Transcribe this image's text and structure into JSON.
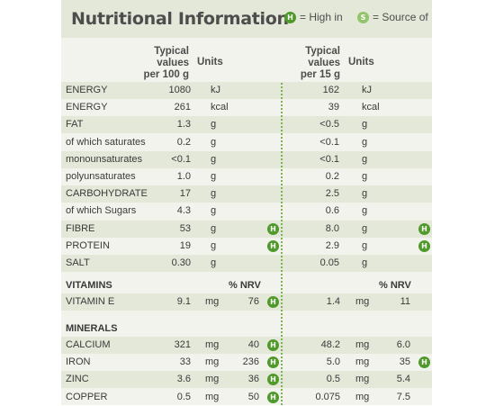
{
  "title": "Nutritional Information",
  "legend": {
    "high_badge": "H",
    "high_label": "= High in",
    "source_badge": "S",
    "source_label": "= Source of"
  },
  "columns": {
    "per100": {
      "line1": "Typical",
      "line2": "values",
      "line3": "per 100 g"
    },
    "units1": "Units",
    "per15": {
      "line1": "Typical",
      "line2": "values",
      "line3": "per 15 g"
    },
    "units2": "Units"
  },
  "nutrients": [
    {
      "name": "ENERGY",
      "v100": "1080",
      "u100": "kJ",
      "h100": "",
      "v15": "162",
      "u15": "kJ",
      "h15": ""
    },
    {
      "name": "ENERGY",
      "v100": "261",
      "u100": "kcal",
      "h100": "",
      "v15": "39",
      "u15": "kcal",
      "h15": ""
    },
    {
      "name": "FAT",
      "v100": "1.3",
      "u100": "g",
      "h100": "",
      "v15": "<0.5",
      "u15": "g",
      "h15": ""
    },
    {
      "name": "of which saturates",
      "v100": "0.2",
      "u100": "g",
      "h100": "",
      "v15": "<0.1",
      "u15": "g",
      "h15": ""
    },
    {
      "name": "monounsaturates",
      "v100": "<0.1",
      "u100": "g",
      "h100": "",
      "v15": "<0.1",
      "u15": "g",
      "h15": ""
    },
    {
      "name": "polyunsaturates",
      "v100": "1.0",
      "u100": "g",
      "h100": "",
      "v15": "0.2",
      "u15": "g",
      "h15": ""
    },
    {
      "name": "CARBOHYDRATE",
      "v100": "17",
      "u100": "g",
      "h100": "",
      "v15": "2.5",
      "u15": "g",
      "h15": ""
    },
    {
      "name": "of which Sugars",
      "v100": "4.3",
      "u100": "g",
      "h100": "",
      "v15": "0.6",
      "u15": "g",
      "h15": ""
    },
    {
      "name": "FIBRE",
      "v100": "53",
      "u100": "g",
      "h100": "H",
      "v15": "8.0",
      "u15": "g",
      "h15": "H"
    },
    {
      "name": "PROTEIN",
      "v100": "19",
      "u100": "g",
      "h100": "H",
      "v15": "2.9",
      "u15": "g",
      "h15": "H"
    },
    {
      "name": "SALT",
      "v100": "0.30",
      "u100": "g",
      "h100": "",
      "v15": "0.05",
      "u15": "g",
      "h15": ""
    }
  ],
  "vitamins": {
    "heading": "VITAMINS",
    "nrv1": "% NRV",
    "nrv2": "% NRV",
    "rows": [
      {
        "name": "VITAMIN E",
        "v100": "9.1",
        "u100": "mg",
        "nrv100": "76",
        "h100": "H",
        "v15": "1.4",
        "u15": "mg",
        "nrv15": "11",
        "h15": ""
      }
    ]
  },
  "minerals": {
    "heading": "MINERALS",
    "rows": [
      {
        "name": "CALCIUM",
        "v100": "321",
        "u100": "mg",
        "nrv100": "40",
        "h100": "H",
        "v15": "48.2",
        "u15": "mg",
        "nrv15": "6.0",
        "h15": ""
      },
      {
        "name": "IRON",
        "v100": "33",
        "u100": "mg",
        "nrv100": "236",
        "h100": "H",
        "v15": "5.0",
        "u15": "mg",
        "nrv15": "35",
        "h15": "H"
      },
      {
        "name": "ZINC",
        "v100": "3.6",
        "u100": "mg",
        "nrv100": "36",
        "h100": "H",
        "v15": "0.5",
        "u15": "mg",
        "nrv15": "5.4",
        "h15": ""
      },
      {
        "name": "COPPER",
        "v100": "0.5",
        "u100": "mg",
        "nrv100": "50",
        "h100": "H",
        "v15": "0.075",
        "u15": "mg",
        "nrv15": "7.5",
        "h15": ""
      }
    ]
  }
}
